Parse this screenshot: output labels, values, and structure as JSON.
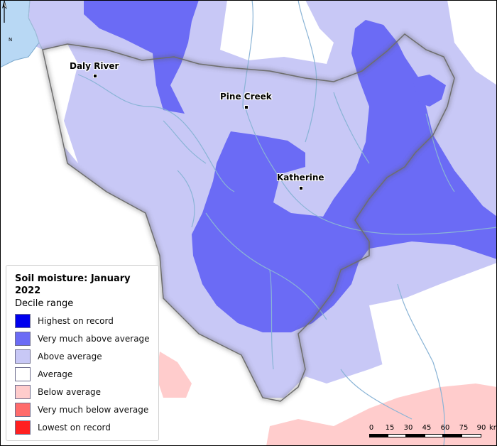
{
  "map": {
    "towns": [
      {
        "name": "Daly River"
      },
      {
        "name": "Pine Creek"
      },
      {
        "name": "Katherine"
      }
    ],
    "colors": {
      "highest": "#0000ee",
      "very_much_above": "#6b6bf5",
      "above": "#c8c8f6",
      "average": "#ffffff",
      "below": "#ffcccc",
      "very_much_below": "#ff6b6b",
      "lowest": "#ff2020",
      "water": "#b8d8f4",
      "river": "#8ab4d6"
    }
  },
  "legend": {
    "title": "Soil moisture: January 2022",
    "subtitle": "Decile range",
    "items": [
      {
        "label": "Highest on record",
        "color": "#0000ee"
      },
      {
        "label": "Very much above average",
        "color": "#6b6bf5"
      },
      {
        "label": "Above average",
        "color": "#c8c8f6"
      },
      {
        "label": "Average",
        "color": "#ffffff"
      },
      {
        "label": "Below average",
        "color": "#ffcccc"
      },
      {
        "label": "Very much below average",
        "color": "#ff6b6b"
      },
      {
        "label": "Lowest on record",
        "color": "#ff2020"
      }
    ]
  },
  "scale_bar": {
    "ticks": [
      "0",
      "15",
      "30",
      "45",
      "60",
      "75",
      "90"
    ],
    "unit": "km"
  },
  "north_arrow": {
    "letter": "N",
    "icon": "north-arrow-icon"
  }
}
